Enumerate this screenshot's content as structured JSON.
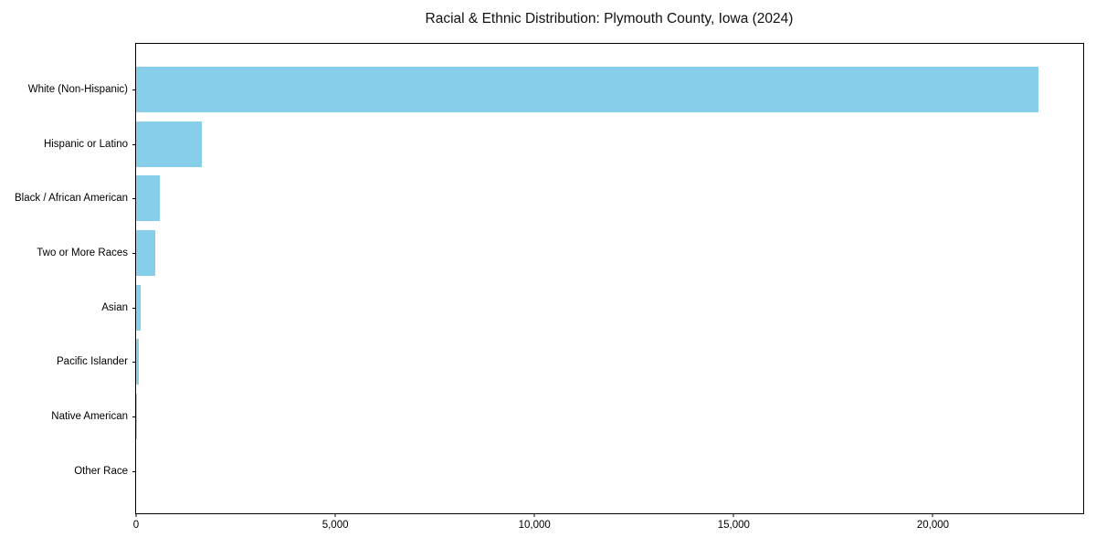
{
  "figure": {
    "title": "Racial & Ethnic Distribution: Plymouth County, Iowa (2024)"
  },
  "chart_data": {
    "type": "bar",
    "orientation": "horizontal",
    "title": "Racial & Ethnic Distribution: Plymouth County, Iowa (2024)",
    "categories": [
      "White (Non-Hispanic)",
      "Hispanic or Latino",
      "Black / African American",
      "Two or More Races",
      "Asian",
      "Pacific Islander",
      "Native American",
      "Other Race"
    ],
    "values": [
      22640,
      1650,
      585,
      490,
      115,
      70,
      30,
      0
    ],
    "xlabel": "",
    "ylabel": "",
    "xlim": [
      0,
      23772
    ],
    "x_ticks": [
      0,
      5000,
      10000,
      15000,
      20000
    ],
    "x_tick_labels": [
      "0",
      "5,000",
      "10,000",
      "15,000",
      "20,000"
    ],
    "bar_color": "#87CEEB",
    "plot_border_color": "#000000",
    "background_color": "#ffffff",
    "grid": false,
    "legend": null
  }
}
